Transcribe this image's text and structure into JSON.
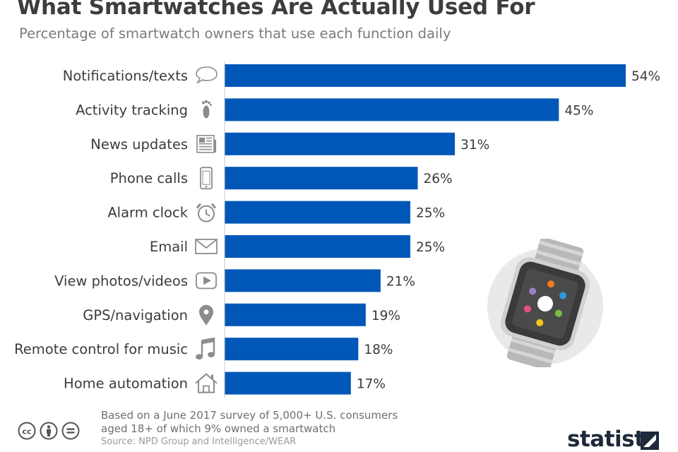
{
  "header": {
    "title": "What Smartwatches Are Actually Used For",
    "subtitle": "Percentage of smartwatch owners that use each function daily"
  },
  "chart_data": {
    "type": "bar",
    "orientation": "horizontal",
    "title": "What Smartwatches Are Actually Used For",
    "subtitle": "Percentage of smartwatch owners that use each function daily",
    "xlabel": "",
    "ylabel": "",
    "xlim": [
      0,
      54
    ],
    "grid": false,
    "legend": "none",
    "bar_color": "#0057b8",
    "categories": [
      "Notifications/texts",
      "Activity tracking",
      "News updates",
      "Phone calls",
      "Alarm clock",
      "Email",
      "View photos/videos",
      "GPS/navigation",
      "Remote control for music",
      "Home automation"
    ],
    "values": [
      54,
      45,
      31,
      26,
      25,
      25,
      21,
      19,
      18,
      17
    ],
    "value_labels": [
      "54%",
      "45%",
      "31%",
      "26%",
      "25%",
      "25%",
      "21%",
      "19%",
      "18%",
      "17%"
    ],
    "icons": [
      "speech-bubble-icon",
      "footprint-icon",
      "newspaper-icon",
      "phone-icon",
      "alarm-clock-icon",
      "envelope-icon",
      "play-video-icon",
      "map-pin-icon",
      "music-note-icon",
      "house-icon"
    ]
  },
  "footer": {
    "note": "Based on a June 2017 survey of 5,000+ U.S. consumers aged 18+ of which 9% owned a smartwatch",
    "source": "Source: NPD Group and Intelligence/WEAR",
    "brand": "statista",
    "license_icons": [
      "creative-commons-icon",
      "attribution-icon",
      "no-derivatives-icon"
    ]
  },
  "colors": {
    "bar": "#0057b8",
    "text": "#3c3c3c",
    "subtitle": "#7b7b7b",
    "icon": "#8c8c8c"
  }
}
